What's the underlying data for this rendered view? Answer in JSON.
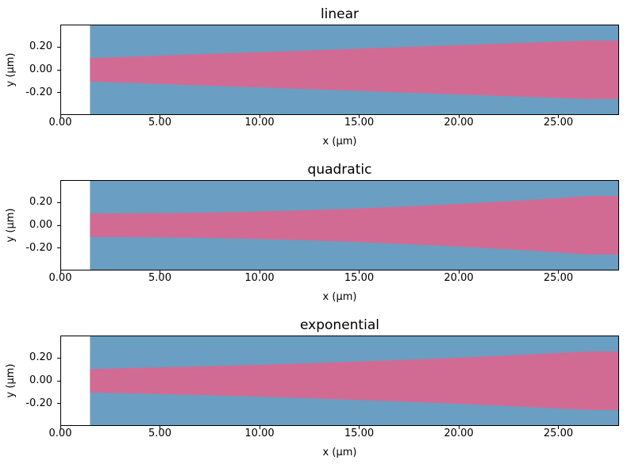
{
  "figure": {
    "background": "#ffffff",
    "cladding_color": "#6a9ec2",
    "core_color": "#d26b93",
    "spine_color": "#000000"
  },
  "chart_data": [
    {
      "type": "area",
      "title": "linear",
      "xlabel": "x (μm)",
      "ylabel": "y (μm)",
      "xlim": [
        0,
        28.05
      ],
      "ylim": [
        -0.397,
        0.397
      ],
      "xticks": [
        0,
        5,
        10,
        15,
        20,
        25
      ],
      "xtick_labels": [
        "0.00",
        "5.00",
        "10.00",
        "15.00",
        "20.00",
        "25.00"
      ],
      "yticks": [
        0.2,
        0.0,
        -0.2
      ],
      "ytick_labels": [
        "0.20",
        "0.00",
        "-0.20"
      ],
      "grid": false,
      "legend": "none",
      "structure": {
        "profile": "linear",
        "x_start_um": 1.49,
        "taper_end_um": 26.55,
        "x_end_um": 28.05,
        "half_width_start_um": 0.103,
        "half_width_end_um": 0.257
      },
      "series": {
        "x": [
          1.49,
          4.0,
          6.5,
          9.0,
          11.5,
          14.0,
          16.5,
          19.0,
          21.5,
          24.0,
          26.55,
          28.05
        ],
        "half_width_um": [
          0.103,
          0.118,
          0.134,
          0.149,
          0.164,
          0.18,
          0.195,
          0.211,
          0.226,
          0.241,
          0.257,
          0.257
        ]
      },
      "colors": {
        "cladding": "#6a9ec2",
        "core": "#d26b93"
      }
    },
    {
      "type": "area",
      "title": "quadratic",
      "xlabel": "x (μm)",
      "ylabel": "y (μm)",
      "xlim": [
        0,
        28.05
      ],
      "ylim": [
        -0.397,
        0.397
      ],
      "xticks": [
        0,
        5,
        10,
        15,
        20,
        25
      ],
      "xtick_labels": [
        "0.00",
        "5.00",
        "10.00",
        "15.00",
        "20.00",
        "25.00"
      ],
      "yticks": [
        0.2,
        0.0,
        -0.2
      ],
      "ytick_labels": [
        "0.20",
        "0.00",
        "-0.20"
      ],
      "grid": false,
      "legend": "none",
      "structure": {
        "profile": "quadratic",
        "x_start_um": 1.49,
        "taper_end_um": 26.55,
        "x_end_um": 28.05,
        "half_width_start_um": 0.103,
        "half_width_end_um": 0.257
      },
      "series": {
        "x": [
          1.49,
          4.0,
          6.5,
          9.0,
          11.5,
          14.0,
          16.5,
          19.0,
          21.5,
          24.0,
          26.55,
          28.05
        ],
        "half_width_um": [
          0.103,
          0.105,
          0.109,
          0.117,
          0.128,
          0.141,
          0.158,
          0.178,
          0.201,
          0.227,
          0.257,
          0.257
        ]
      },
      "colors": {
        "cladding": "#6a9ec2",
        "core": "#d26b93"
      }
    },
    {
      "type": "area",
      "title": "exponential",
      "xlabel": "x (μm)",
      "ylabel": "y (μm)",
      "xlim": [
        0,
        28.05
      ],
      "ylim": [
        -0.397,
        0.397
      ],
      "xticks": [
        0,
        5,
        10,
        15,
        20,
        25
      ],
      "xtick_labels": [
        "0.00",
        "5.00",
        "10.00",
        "15.00",
        "20.00",
        "25.00"
      ],
      "yticks": [
        0.2,
        0.0,
        -0.2
      ],
      "ytick_labels": [
        "0.20",
        "0.00",
        "-0.20"
      ],
      "grid": false,
      "legend": "none",
      "structure": {
        "profile": "exponential",
        "x_start_um": 1.49,
        "taper_end_um": 26.55,
        "x_end_um": 28.05,
        "half_width_start_um": 0.103,
        "half_width_end_um": 0.257
      },
      "series": {
        "x": [
          1.49,
          4.0,
          6.5,
          9.0,
          11.5,
          14.0,
          16.5,
          19.0,
          21.5,
          24.0,
          26.55,
          28.05
        ],
        "half_width_um": [
          0.103,
          0.113,
          0.124,
          0.135,
          0.148,
          0.163,
          0.178,
          0.195,
          0.214,
          0.235,
          0.257,
          0.257
        ]
      },
      "colors": {
        "cladding": "#6a9ec2",
        "core": "#d26b93"
      }
    }
  ]
}
